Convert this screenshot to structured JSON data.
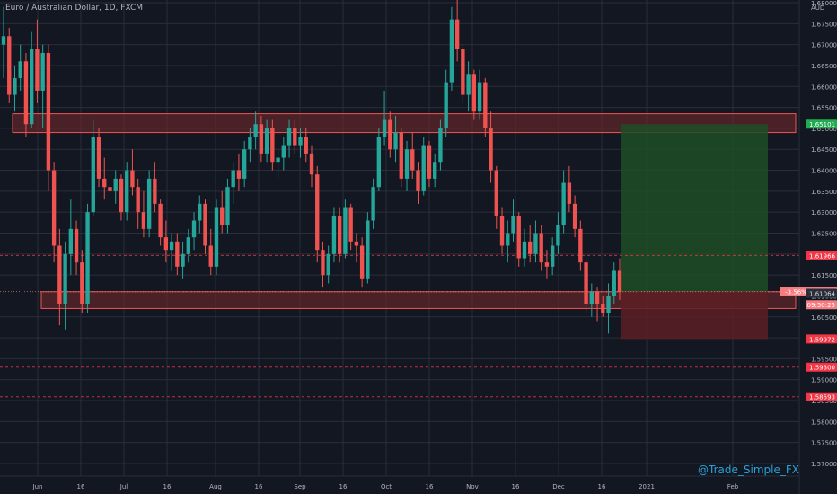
{
  "header": {
    "title": "Euro / Australian Dollar, 1D, FXCM",
    "unit": "AUD"
  },
  "watermark": "@Trade_Simple_FX",
  "colors": {
    "background": "#131722",
    "grid": "#2a2e39",
    "up": "#26a69a",
    "down": "#ef5350",
    "zone_fill": "#7a2a2d",
    "zone_border": "#ef5350",
    "profit_fill": "#1d4d26",
    "loss_fill": "#5c1f25",
    "price_line": "#f23645",
    "axis_text": "#b2b5be"
  },
  "chart_data": {
    "type": "candlestick",
    "ylim": [
      1.565,
      1.685
    ],
    "y_ticks": [
      "1.68000",
      "1.67500",
      "1.67000",
      "1.66500",
      "1.66000",
      "1.65500",
      "1.65000",
      "1.64500",
      "1.64000",
      "1.63500",
      "1.63000",
      "1.62500",
      "1.62000",
      "1.61500",
      "1.61000",
      "1.60500",
      "1.60000",
      "1.59500",
      "1.59000",
      "1.58500",
      "1.58000",
      "1.57500",
      "1.57000"
    ],
    "x_ticks": [
      "Jun",
      "16",
      "Jul",
      "16",
      "Aug",
      "16",
      "Sep",
      "16",
      "Oct",
      "16",
      "Nov",
      "16",
      "Dec",
      "16",
      "2021",
      "Feb"
    ],
    "zones": [
      {
        "name": "resistance",
        "low": 1.649,
        "high": 1.6535
      },
      {
        "name": "support",
        "low": 1.607,
        "high": 1.611
      }
    ],
    "position": {
      "entry": 1.61103,
      "target": 1.65101,
      "stop": 1.59972
    },
    "price_labels": [
      {
        "text": "1.65101",
        "value": 1.65101,
        "color": "#22ab50"
      },
      {
        "text": "1.61966",
        "value": 1.61966,
        "color": "#f23645"
      },
      {
        "text": "-3.56%  1.61103",
        "value": 1.61103,
        "color": "#f77c80"
      },
      {
        "text": "09:50:25",
        "value": 1.6079,
        "color": "#f77c80"
      },
      {
        "text": "1.61064",
        "value": 1.61064,
        "color": "#2a2e39"
      },
      {
        "text": "1.59972",
        "value": 1.59972,
        "color": "#f23645"
      },
      {
        "text": "1.59300",
        "value": 1.593,
        "color": "#f23645"
      },
      {
        "text": "1.58593",
        "value": 1.58593,
        "color": "#f23645"
      }
    ],
    "dashed_levels": [
      1.61966,
      1.593,
      1.58593
    ],
    "candles": [
      [
        1.67,
        1.679,
        1.662,
        1.672
      ],
      [
        1.672,
        1.674,
        1.656,
        1.658
      ],
      [
        1.658,
        1.665,
        1.654,
        1.662
      ],
      [
        1.662,
        1.67,
        1.659,
        1.666
      ],
      [
        1.666,
        1.668,
        1.648,
        1.651
      ],
      [
        1.651,
        1.673,
        1.65,
        1.669
      ],
      [
        1.669,
        1.676,
        1.656,
        1.659
      ],
      [
        1.659,
        1.67,
        1.65,
        1.668
      ],
      [
        1.668,
        1.67,
        1.635,
        1.64
      ],
      [
        1.64,
        1.642,
        1.618,
        1.622
      ],
      [
        1.622,
        1.626,
        1.603,
        1.608
      ],
      [
        1.608,
        1.623,
        1.602,
        1.62
      ],
      [
        1.62,
        1.633,
        1.615,
        1.626
      ],
      [
        1.626,
        1.628,
        1.615,
        1.618
      ],
      [
        1.618,
        1.621,
        1.606,
        1.608
      ],
      [
        1.608,
        1.632,
        1.606,
        1.63
      ],
      [
        1.63,
        1.652,
        1.629,
        1.648
      ],
      [
        1.648,
        1.65,
        1.636,
        1.638
      ],
      [
        1.638,
        1.643,
        1.633,
        1.636
      ],
      [
        1.636,
        1.639,
        1.63,
        1.635
      ],
      [
        1.635,
        1.64,
        1.632,
        1.638
      ],
      [
        1.638,
        1.639,
        1.628,
        1.63
      ],
      [
        1.63,
        1.642,
        1.628,
        1.64
      ],
      [
        1.64,
        1.645,
        1.634,
        1.636
      ],
      [
        1.636,
        1.638,
        1.626,
        1.63
      ],
      [
        1.63,
        1.635,
        1.624,
        1.626
      ],
      [
        1.626,
        1.64,
        1.624,
        1.638
      ],
      [
        1.638,
        1.642,
        1.63,
        1.632
      ],
      [
        1.632,
        1.633,
        1.622,
        1.624
      ],
      [
        1.624,
        1.628,
        1.618,
        1.621
      ],
      [
        1.621,
        1.625,
        1.616,
        1.623
      ],
      [
        1.623,
        1.625,
        1.615,
        1.617
      ],
      [
        1.617,
        1.623,
        1.614,
        1.62
      ],
      [
        1.62,
        1.626,
        1.618,
        1.624
      ],
      [
        1.624,
        1.63,
        1.621,
        1.628
      ],
      [
        1.628,
        1.634,
        1.625,
        1.632
      ],
      [
        1.632,
        1.633,
        1.62,
        1.622
      ],
      [
        1.622,
        1.626,
        1.615,
        1.617
      ],
      [
        1.617,
        1.633,
        1.615,
        1.631
      ],
      [
        1.631,
        1.635,
        1.625,
        1.627
      ],
      [
        1.627,
        1.638,
        1.625,
        1.636
      ],
      [
        1.636,
        1.642,
        1.632,
        1.64
      ],
      [
        1.64,
        1.644,
        1.635,
        1.638
      ],
      [
        1.638,
        1.647,
        1.636,
        1.645
      ],
      [
        1.645,
        1.65,
        1.642,
        1.648
      ],
      [
        1.648,
        1.654,
        1.645,
        1.651
      ],
      [
        1.651,
        1.653,
        1.642,
        1.644
      ],
      [
        1.644,
        1.652,
        1.642,
        1.65
      ],
      [
        1.65,
        1.652,
        1.64,
        1.642
      ],
      [
        1.642,
        1.645,
        1.638,
        1.643
      ],
      [
        1.643,
        1.648,
        1.64,
        1.646
      ],
      [
        1.646,
        1.652,
        1.643,
        1.65
      ],
      [
        1.65,
        1.652,
        1.644,
        1.646
      ],
      [
        1.646,
        1.65,
        1.643,
        1.648
      ],
      [
        1.648,
        1.65,
        1.642,
        1.644
      ],
      [
        1.644,
        1.646,
        1.636,
        1.639
      ],
      [
        1.639,
        1.641,
        1.618,
        1.621
      ],
      [
        1.621,
        1.623,
        1.612,
        1.615
      ],
      [
        1.615,
        1.622,
        1.613,
        1.62
      ],
      [
        1.62,
        1.631,
        1.618,
        1.629
      ],
      [
        1.629,
        1.631,
        1.618,
        1.62
      ],
      [
        1.62,
        1.633,
        1.619,
        1.631
      ],
      [
        1.631,
        1.632,
        1.621,
        1.623
      ],
      [
        1.623,
        1.625,
        1.618,
        1.622
      ],
      [
        1.622,
        1.624,
        1.612,
        1.614
      ],
      [
        1.614,
        1.63,
        1.613,
        1.628
      ],
      [
        1.628,
        1.638,
        1.626,
        1.636
      ],
      [
        1.636,
        1.65,
        1.635,
        1.648
      ],
      [
        1.648,
        1.659,
        1.646,
        1.652
      ],
      [
        1.652,
        1.654,
        1.643,
        1.645
      ],
      [
        1.645,
        1.653,
        1.642,
        1.649
      ],
      [
        1.649,
        1.65,
        1.636,
        1.638
      ],
      [
        1.638,
        1.647,
        1.635,
        1.645
      ],
      [
        1.645,
        1.649,
        1.638,
        1.64
      ],
      [
        1.64,
        1.642,
        1.632,
        1.635
      ],
      [
        1.635,
        1.648,
        1.634,
        1.646
      ],
      [
        1.646,
        1.647,
        1.636,
        1.638
      ],
      [
        1.638,
        1.644,
        1.636,
        1.642
      ],
      [
        1.642,
        1.652,
        1.64,
        1.65
      ],
      [
        1.65,
        1.664,
        1.648,
        1.661
      ],
      [
        1.661,
        1.679,
        1.659,
        1.676
      ],
      [
        1.676,
        1.682,
        1.666,
        1.669
      ],
      [
        1.669,
        1.67,
        1.656,
        1.658
      ],
      [
        1.658,
        1.666,
        1.654,
        1.663
      ],
      [
        1.663,
        1.664,
        1.652,
        1.654
      ],
      [
        1.654,
        1.664,
        1.652,
        1.661
      ],
      [
        1.661,
        1.662,
        1.648,
        1.65
      ],
      [
        1.65,
        1.654,
        1.637,
        1.64
      ],
      [
        1.64,
        1.641,
        1.626,
        1.629
      ],
      [
        1.629,
        1.631,
        1.62,
        1.622
      ],
      [
        1.622,
        1.628,
        1.618,
        1.625
      ],
      [
        1.625,
        1.633,
        1.623,
        1.629
      ],
      [
        1.629,
        1.63,
        1.617,
        1.619
      ],
      [
        1.619,
        1.626,
        1.617,
        1.623
      ],
      [
        1.623,
        1.627,
        1.618,
        1.62
      ],
      [
        1.62,
        1.628,
        1.618,
        1.625
      ],
      [
        1.625,
        1.627,
        1.616,
        1.618
      ],
      [
        1.618,
        1.621,
        1.614,
        1.617
      ],
      [
        1.617,
        1.624,
        1.615,
        1.622
      ],
      [
        1.622,
        1.63,
        1.62,
        1.627
      ],
      [
        1.627,
        1.64,
        1.625,
        1.637
      ],
      [
        1.637,
        1.641,
        1.63,
        1.632
      ],
      [
        1.632,
        1.634,
        1.624,
        1.626
      ],
      [
        1.626,
        1.628,
        1.616,
        1.618
      ],
      [
        1.618,
        1.619,
        1.606,
        1.608
      ],
      [
        1.608,
        1.613,
        1.605,
        1.611
      ],
      [
        1.611,
        1.612,
        1.604,
        1.608
      ],
      [
        1.608,
        1.61,
        1.605,
        1.606
      ],
      [
        1.606,
        1.613,
        1.601,
        1.61
      ],
      [
        1.61,
        1.618,
        1.608,
        1.616
      ],
      [
        1.616,
        1.619,
        1.609,
        1.611
      ]
    ]
  }
}
